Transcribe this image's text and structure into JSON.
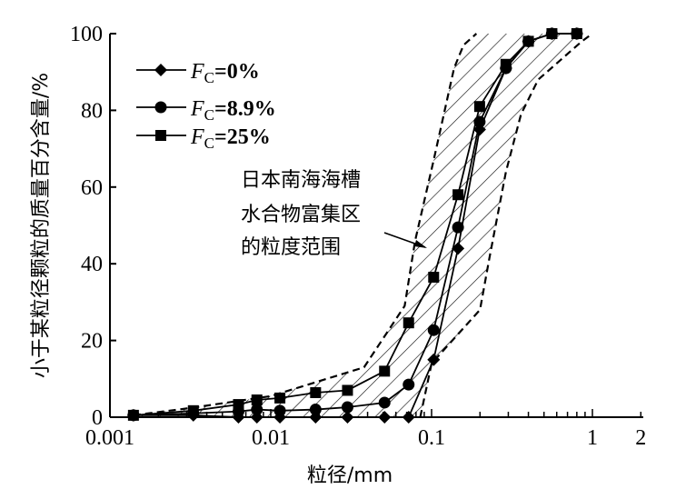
{
  "chart_data": {
    "type": "line",
    "title": "",
    "xlabel": "粒径/mm",
    "ylabel": "小于某粒径颗粒的质量百分含量/%",
    "xscale": "log",
    "xlim": [
      0.001,
      2
    ],
    "ylim": [
      0,
      100
    ],
    "xticks": [
      {
        "v": 0.001,
        "label": "0.001"
      },
      {
        "v": 0.01,
        "label": "0.01"
      },
      {
        "v": 0.1,
        "label": "0.1"
      },
      {
        "v": 1,
        "label": "1"
      },
      {
        "v": 2,
        "label": "2"
      }
    ],
    "yticks": [
      {
        "v": 0,
        "label": "0"
      },
      {
        "v": 20,
        "label": "20"
      },
      {
        "v": 40,
        "label": "40"
      },
      {
        "v": 60,
        "label": "60"
      },
      {
        "v": 80,
        "label": "80"
      },
      {
        "v": 100,
        "label": "100"
      }
    ],
    "legend_position": "top-left",
    "x": [
      0.0014,
      0.0033,
      0.0063,
      0.0082,
      0.0114,
      0.019,
      0.03,
      0.051,
      0.072,
      0.103,
      0.146,
      0.199,
      0.29,
      0.4,
      0.56,
      0.8
    ],
    "series": [
      {
        "name": "Fc=0%",
        "legend_prefix": "F",
        "legend_sub": "C",
        "legend_suffix": "=0%",
        "marker": "diamond",
        "values": [
          0.5,
          0.5,
          0,
          0,
          0,
          0,
          0,
          0,
          0,
          15,
          44,
          75,
          91,
          98,
          100,
          100
        ]
      },
      {
        "name": "Fc=8.9%",
        "legend_prefix": "F",
        "legend_sub": "C",
        "legend_suffix": "=8.9%",
        "marker": "circle",
        "values": [
          0.5,
          1,
          1.5,
          2,
          1.7,
          2,
          2.6,
          3.8,
          8.5,
          22.7,
          49.5,
          77,
          91,
          98,
          100,
          100
        ]
      },
      {
        "name": "Fc=25%",
        "legend_prefix": "F",
        "legend_sub": "C",
        "legend_suffix": "=25%",
        "marker": "square",
        "values": [
          0.5,
          1.7,
          3.3,
          4.5,
          5,
          6.4,
          7,
          12,
          24.6,
          36.5,
          58,
          81,
          92,
          98,
          100,
          100
        ]
      }
    ],
    "band": {
      "label_lines": [
        "日本南海海槽",
        "水合物富集区",
        "的粒度范围"
      ],
      "upper": [
        [
          0.0014,
          0.5
        ],
        [
          0.0033,
          2.5
        ],
        [
          0.01,
          5.5
        ],
        [
          0.038,
          13
        ],
        [
          0.068,
          29
        ],
        [
          0.079,
          46
        ],
        [
          0.103,
          67
        ],
        [
          0.138,
          91
        ],
        [
          0.158,
          97
        ],
        [
          0.19,
          100
        ]
      ],
      "lower": [
        [
          0.0014,
          0
        ],
        [
          0.085,
          0
        ],
        [
          0.1,
          14
        ],
        [
          0.2,
          28
        ],
        [
          0.23,
          42
        ],
        [
          0.29,
          64
        ],
        [
          0.36,
          79
        ],
        [
          0.46,
          88
        ],
        [
          0.86,
          98
        ],
        [
          1.0,
          100
        ]
      ]
    }
  }
}
